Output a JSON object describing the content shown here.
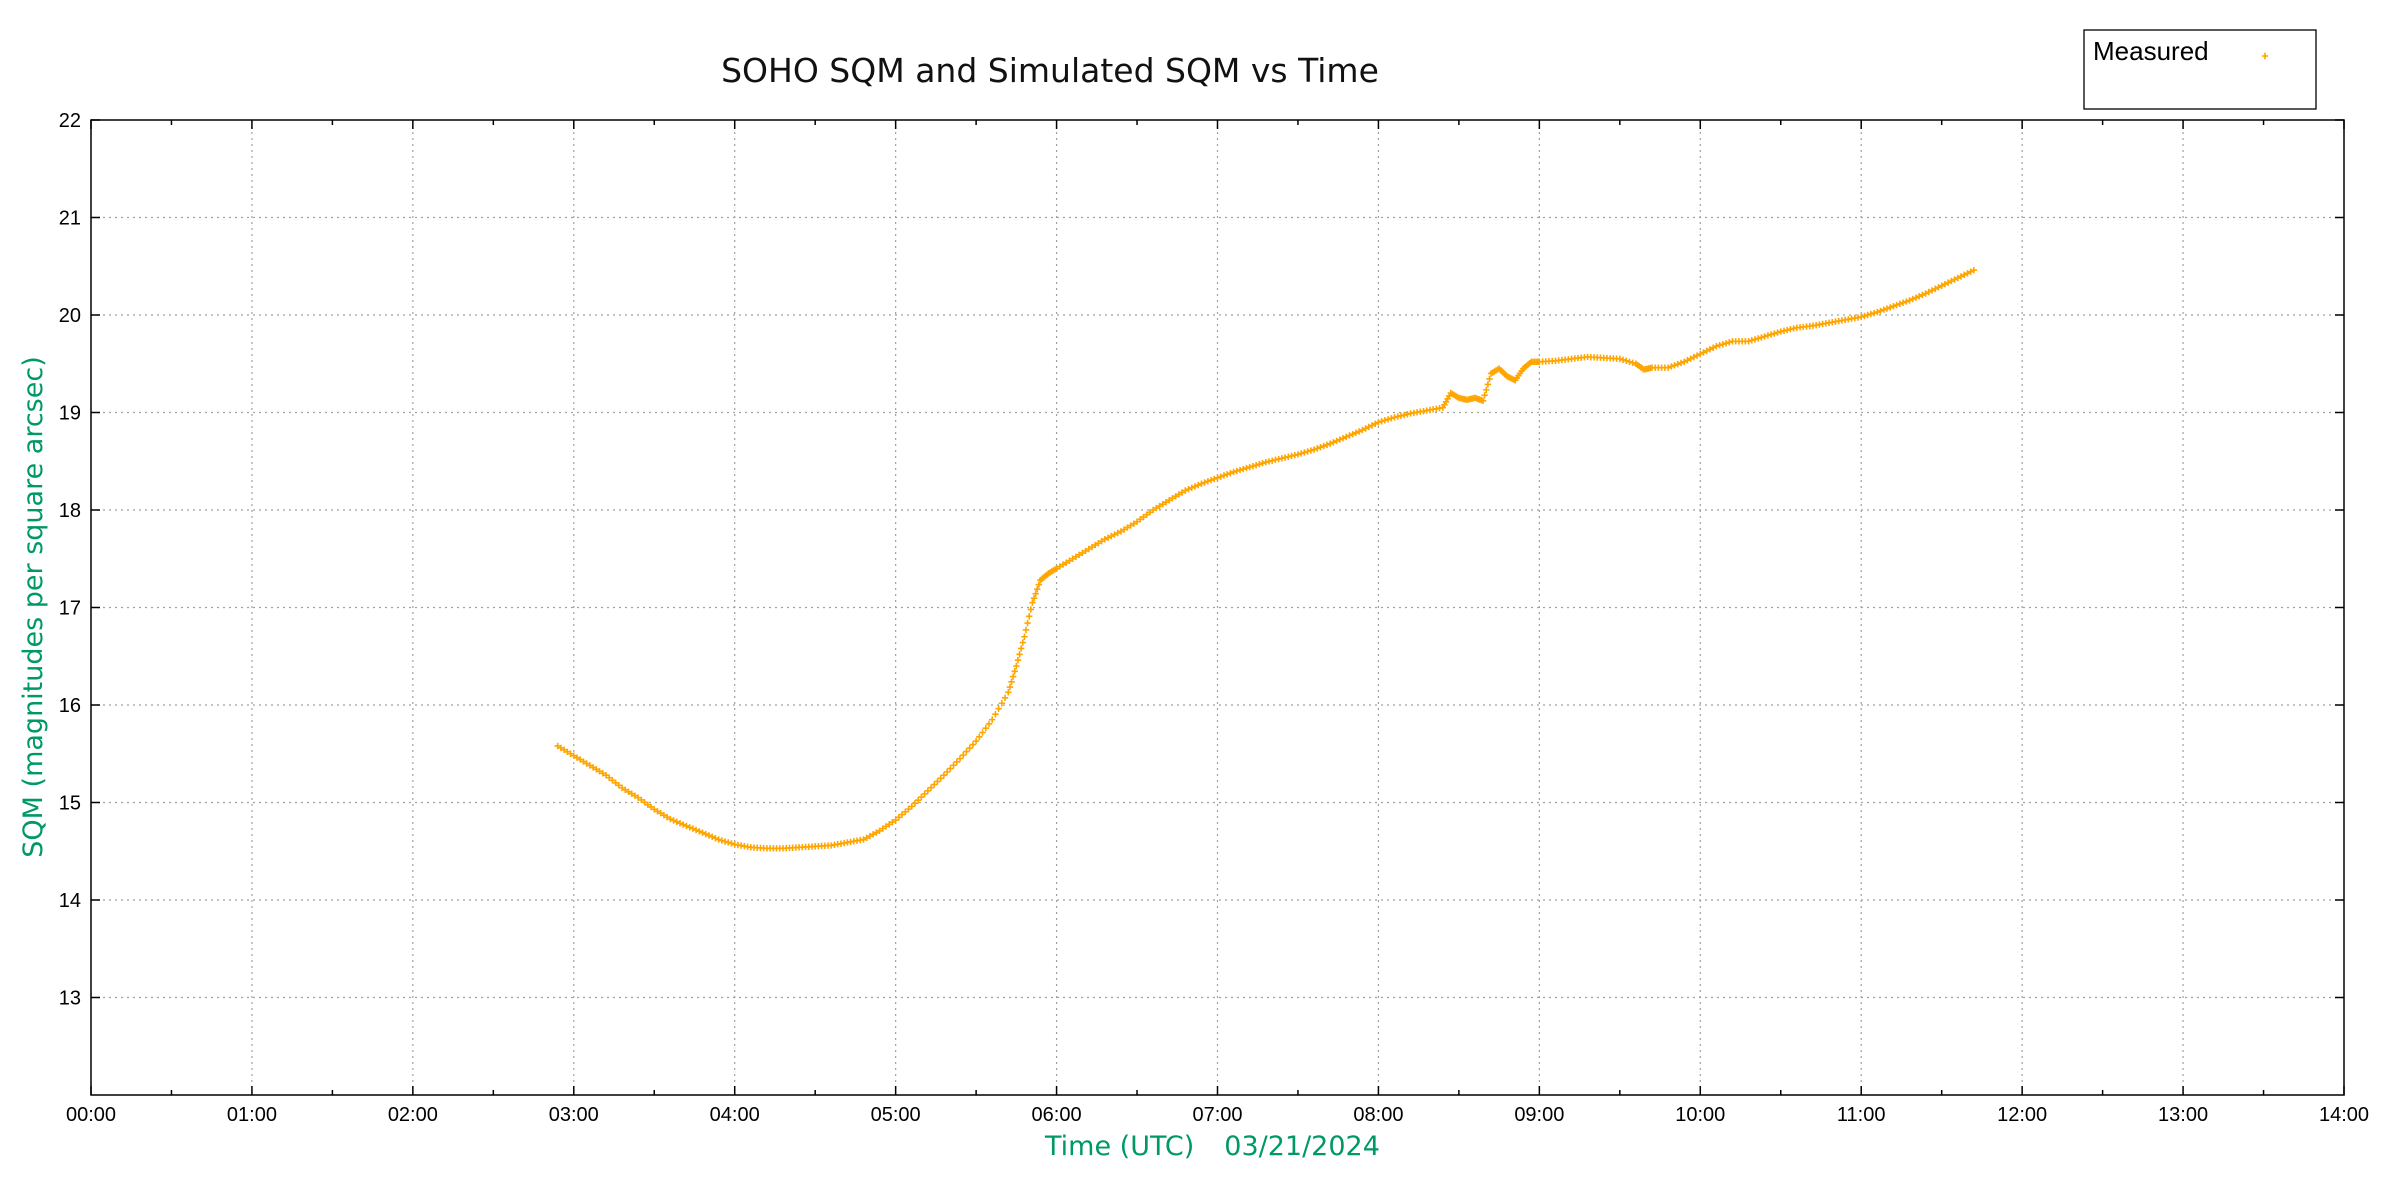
{
  "chart_data": {
    "type": "scatter",
    "title": "SOHO SQM and Simulated SQM vs Time",
    "xlabel": "Time (UTC)",
    "date_label": "03/21/2024",
    "ylabel": "SQM (magnitudes per square arcsec)",
    "xlim": [
      0,
      14
    ],
    "ylim": [
      12,
      22
    ],
    "x_unit": "hours UTC",
    "x_ticks": [
      0,
      1,
      2,
      3,
      4,
      5,
      6,
      7,
      8,
      9,
      10,
      11,
      12,
      13,
      14
    ],
    "x_tick_labels": [
      "00:00",
      "01:00",
      "02:00",
      "03:00",
      "04:00",
      "05:00",
      "06:00",
      "07:00",
      "08:00",
      "09:00",
      "10:00",
      "11:00",
      "12:00",
      "13:00",
      "14:00"
    ],
    "y_ticks": [
      13,
      14,
      15,
      16,
      17,
      18,
      19,
      20,
      21,
      22
    ],
    "y_tick_labels": [
      "13",
      "14",
      "15",
      "16",
      "17",
      "18",
      "19",
      "20",
      "21",
      "22"
    ],
    "grid": true,
    "legend_position": "top-right",
    "axis_label_color": "#009966",
    "marker": "+",
    "series": [
      {
        "name": "Measured",
        "color": "#ffa500",
        "x": [
          2.9,
          3.0,
          3.1,
          3.2,
          3.3,
          3.4,
          3.5,
          3.6,
          3.7,
          3.8,
          3.9,
          4.0,
          4.1,
          4.2,
          4.3,
          4.4,
          4.5,
          4.6,
          4.7,
          4.8,
          4.9,
          5.0,
          5.1,
          5.2,
          5.3,
          5.4,
          5.5,
          5.6,
          5.7,
          5.75,
          5.8,
          5.85,
          5.9,
          5.95,
          6.0,
          6.1,
          6.2,
          6.3,
          6.4,
          6.5,
          6.6,
          6.7,
          6.8,
          6.9,
          7.0,
          7.1,
          7.2,
          7.3,
          7.4,
          7.5,
          7.6,
          7.7,
          7.8,
          7.9,
          8.0,
          8.1,
          8.2,
          8.3,
          8.4,
          8.45,
          8.5,
          8.55,
          8.6,
          8.65,
          8.7,
          8.75,
          8.8,
          8.85,
          8.9,
          8.95,
          9.0,
          9.1,
          9.2,
          9.3,
          9.4,
          9.5,
          9.6,
          9.65,
          9.7,
          9.8,
          9.9,
          10.0,
          10.1,
          10.2,
          10.3,
          10.4,
          10.5,
          10.6,
          10.7,
          10.8,
          10.9,
          11.0,
          11.1,
          11.2,
          11.3,
          11.4,
          11.5,
          11.6,
          11.7
        ],
        "y": [
          15.58,
          15.48,
          15.38,
          15.28,
          15.15,
          15.05,
          14.93,
          14.83,
          14.76,
          14.69,
          14.62,
          14.57,
          14.54,
          14.53,
          14.53,
          14.54,
          14.55,
          14.56,
          14.59,
          14.62,
          14.71,
          14.82,
          14.96,
          15.12,
          15.28,
          15.45,
          15.63,
          15.85,
          16.13,
          16.4,
          16.7,
          17.05,
          17.28,
          17.35,
          17.4,
          17.5,
          17.6,
          17.7,
          17.78,
          17.88,
          18.0,
          18.1,
          18.2,
          18.27,
          18.33,
          18.39,
          18.44,
          18.49,
          18.53,
          18.57,
          18.62,
          18.68,
          18.75,
          18.82,
          18.9,
          18.95,
          18.99,
          19.02,
          19.05,
          19.2,
          19.15,
          19.13,
          19.15,
          19.12,
          19.4,
          19.45,
          19.37,
          19.33,
          19.45,
          19.52,
          19.52,
          19.53,
          19.55,
          19.57,
          19.56,
          19.55,
          19.5,
          19.44,
          19.46,
          19.46,
          19.52,
          19.6,
          19.68,
          19.73,
          19.73,
          19.78,
          19.83,
          19.87,
          19.89,
          19.92,
          19.95,
          19.98,
          20.03,
          20.09,
          20.15,
          20.22,
          20.3,
          20.38,
          20.46
        ]
      }
    ]
  }
}
